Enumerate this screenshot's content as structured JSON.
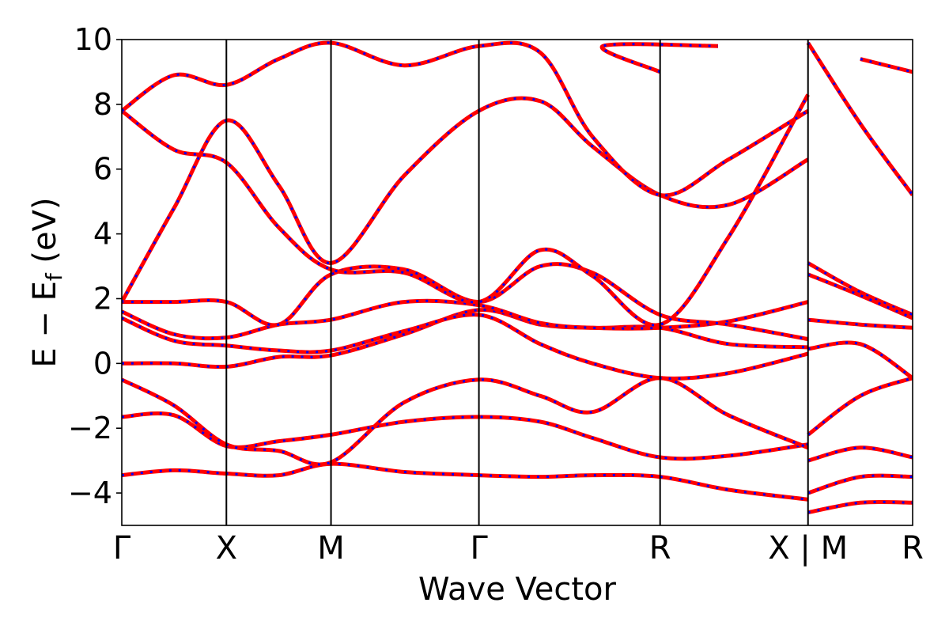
{
  "chart_data": {
    "type": "line",
    "title": "",
    "xlabel": "Wave Vector",
    "ylabel_main": "E − E",
    "ylabel_sub": "f",
    "ylabel_unit": " (eV)",
    "ylim": [
      -5,
      10
    ],
    "yticks": [
      -4,
      -2,
      0,
      2,
      4,
      6,
      8,
      10
    ],
    "ytick_labels": [
      "−4",
      "−2",
      "0",
      "2",
      "4",
      "6",
      "8",
      "10"
    ],
    "grid": false,
    "kpath": [
      {
        "label": "Γ",
        "x": 0.0
      },
      {
        "label": "X",
        "x": 1.0
      },
      {
        "label": "M",
        "x": 2.0
      },
      {
        "label": "Γ",
        "x": 3.414
      },
      {
        "label": "R",
        "x": 5.146
      },
      {
        "label": "X | M",
        "x": 6.56
      },
      {
        "label": "R",
        "x": 7.56
      }
    ],
    "xlim": [
      0,
      7.56
    ],
    "line_styles": {
      "solid_color": "#ff0000",
      "dashed_color": "#0000ff"
    },
    "series": [
      {
        "points": [
          [
            0,
            -3.45
          ],
          [
            0.5,
            -3.3
          ],
          [
            1,
            -3.4
          ],
          [
            1.5,
            -3.45
          ],
          [
            2,
            -3.1
          ],
          [
            2.7,
            -3.35
          ],
          [
            3.414,
            -3.45
          ],
          [
            4.0,
            -3.5
          ],
          [
            4.5,
            -3.45
          ],
          [
            5.146,
            -3.5
          ],
          [
            5.8,
            -3.9
          ],
          [
            6.56,
            -4.2
          ]
        ]
      },
      {
        "points": [
          [
            0,
            -1.65
          ],
          [
            0.5,
            -1.6
          ],
          [
            1,
            -2.55
          ],
          [
            1.5,
            -2.4
          ],
          [
            2,
            -2.2
          ],
          [
            2.7,
            -1.8
          ],
          [
            3.414,
            -1.65
          ],
          [
            4.0,
            -1.8
          ],
          [
            4.5,
            -2.3
          ],
          [
            5.146,
            -2.9
          ],
          [
            5.8,
            -2.85
          ],
          [
            6.56,
            -2.5
          ]
        ]
      },
      {
        "points": [
          [
            0,
            -0.5
          ],
          [
            0.5,
            -1.3
          ],
          [
            1,
            -2.5
          ],
          [
            1.5,
            -2.7
          ],
          [
            2,
            -3.05
          ],
          [
            2.7,
            -1.2
          ],
          [
            3.414,
            -0.5
          ],
          [
            4.0,
            -1.0
          ],
          [
            4.5,
            -1.5
          ],
          [
            5.146,
            -0.45
          ],
          [
            5.8,
            -1.6
          ],
          [
            6.56,
            -2.6
          ]
        ]
      },
      {
        "points": [
          [
            0,
            0.0
          ],
          [
            0.5,
            0.0
          ],
          [
            1,
            -0.1
          ],
          [
            1.5,
            0.2
          ],
          [
            2,
            0.25
          ],
          [
            2.7,
            0.9
          ],
          [
            3.414,
            1.65
          ],
          [
            4.0,
            1.2
          ],
          [
            4.5,
            1.1
          ],
          [
            5.146,
            1.1
          ],
          [
            5.8,
            0.6
          ],
          [
            6.56,
            0.5
          ]
        ]
      },
      {
        "points": [
          [
            0,
            1.4
          ],
          [
            0.5,
            0.7
          ],
          [
            1,
            0.55
          ],
          [
            1.5,
            0.4
          ],
          [
            2,
            0.4
          ],
          [
            2.7,
            1.0
          ],
          [
            3.414,
            1.5
          ],
          [
            4.0,
            0.6
          ],
          [
            4.5,
            0.0
          ],
          [
            5.146,
            -0.45
          ],
          [
            5.8,
            -0.3
          ],
          [
            6.56,
            0.3
          ]
        ]
      },
      {
        "points": [
          [
            0,
            1.6
          ],
          [
            0.5,
            0.9
          ],
          [
            1,
            0.8
          ],
          [
            1.5,
            1.2
          ],
          [
            2,
            1.35
          ],
          [
            2.7,
            1.9
          ],
          [
            3.414,
            1.8
          ],
          [
            4.0,
            1.25
          ],
          [
            4.5,
            1.1
          ],
          [
            5.146,
            1.1
          ],
          [
            5.8,
            1.3
          ],
          [
            6.56,
            1.9
          ]
        ]
      },
      {
        "points": [
          [
            0,
            1.9
          ],
          [
            0.5,
            1.9
          ],
          [
            1,
            1.9
          ],
          [
            1.5,
            1.2
          ],
          [
            2,
            2.75
          ],
          [
            2.7,
            2.9
          ],
          [
            3.414,
            1.9
          ],
          [
            4.0,
            3.0
          ],
          [
            4.5,
            2.8
          ],
          [
            5.146,
            1.5
          ],
          [
            5.8,
            1.2
          ],
          [
            6.56,
            0.75
          ]
        ]
      },
      {
        "points": [
          [
            0,
            1.9
          ],
          [
            0.5,
            4.8
          ],
          [
            1,
            7.5
          ],
          [
            1.5,
            5.5
          ],
          [
            2,
            3.1
          ],
          [
            2.7,
            5.8
          ],
          [
            3.414,
            7.8
          ],
          [
            4.0,
            8.1
          ],
          [
            4.5,
            6.7
          ],
          [
            5.146,
            5.2
          ],
          [
            5.8,
            4.9
          ],
          [
            6.56,
            6.3
          ]
        ]
      },
      {
        "points": [
          [
            0,
            7.8
          ],
          [
            0.5,
            6.6
          ],
          [
            1,
            6.2
          ],
          [
            1.5,
            4.2
          ],
          [
            2,
            2.9
          ],
          [
            2.7,
            2.8
          ],
          [
            3.414,
            1.9
          ],
          [
            4.0,
            3.5
          ],
          [
            4.5,
            2.7
          ],
          [
            5.146,
            1.2
          ],
          [
            5.8,
            3.9
          ],
          [
            6.56,
            8.3
          ]
        ]
      },
      {
        "points": [
          [
            0,
            7.8
          ],
          [
            0.5,
            8.9
          ],
          [
            1,
            8.6
          ],
          [
            1.5,
            9.4
          ],
          [
            2,
            9.9
          ],
          [
            2.7,
            9.2
          ],
          [
            3.414,
            9.8
          ],
          [
            4.0,
            9.6
          ],
          [
            4.5,
            7.0
          ],
          [
            5.146,
            5.2
          ],
          [
            5.8,
            6.3
          ],
          [
            6.56,
            7.8
          ]
        ]
      },
      {
        "points": [
          [
            6.56,
            3.1
          ],
          [
            7.06,
            2.2
          ],
          [
            7.56,
            1.5
          ]
        ]
      },
      {
        "points": [
          [
            6.56,
            2.75
          ],
          [
            7.06,
            2.1
          ],
          [
            7.56,
            1.4
          ]
        ]
      },
      {
        "points": [
          [
            6.56,
            1.35
          ],
          [
            7.06,
            1.2
          ],
          [
            7.56,
            1.1
          ]
        ]
      },
      {
        "points": [
          [
            6.56,
            0.45
          ],
          [
            7.06,
            0.6
          ],
          [
            7.56,
            -0.45
          ]
        ]
      },
      {
        "points": [
          [
            6.56,
            -2.2
          ],
          [
            7.06,
            -1.0
          ],
          [
            7.56,
            -0.45
          ]
        ]
      },
      {
        "points": [
          [
            6.56,
            -3.0
          ],
          [
            7.06,
            -2.6
          ],
          [
            7.56,
            -2.9
          ]
        ]
      },
      {
        "points": [
          [
            6.56,
            -4.0
          ],
          [
            7.06,
            -3.5
          ],
          [
            7.56,
            -3.5
          ]
        ]
      },
      {
        "points": [
          [
            6.56,
            -4.6
          ],
          [
            7.06,
            -4.3
          ],
          [
            7.56,
            -4.3
          ]
        ]
      },
      {
        "points": [
          [
            6.56,
            9.9
          ],
          [
            7.06,
            7.4
          ],
          [
            7.56,
            5.2
          ]
        ]
      },
      {
        "points": [
          [
            5.146,
            9.0
          ],
          [
            4.6,
            9.8
          ],
          [
            5.7,
            9.8
          ]
        ]
      },
      {
        "points": [
          [
            7.06,
            9.4
          ],
          [
            7.56,
            9.0
          ]
        ]
      }
    ]
  }
}
